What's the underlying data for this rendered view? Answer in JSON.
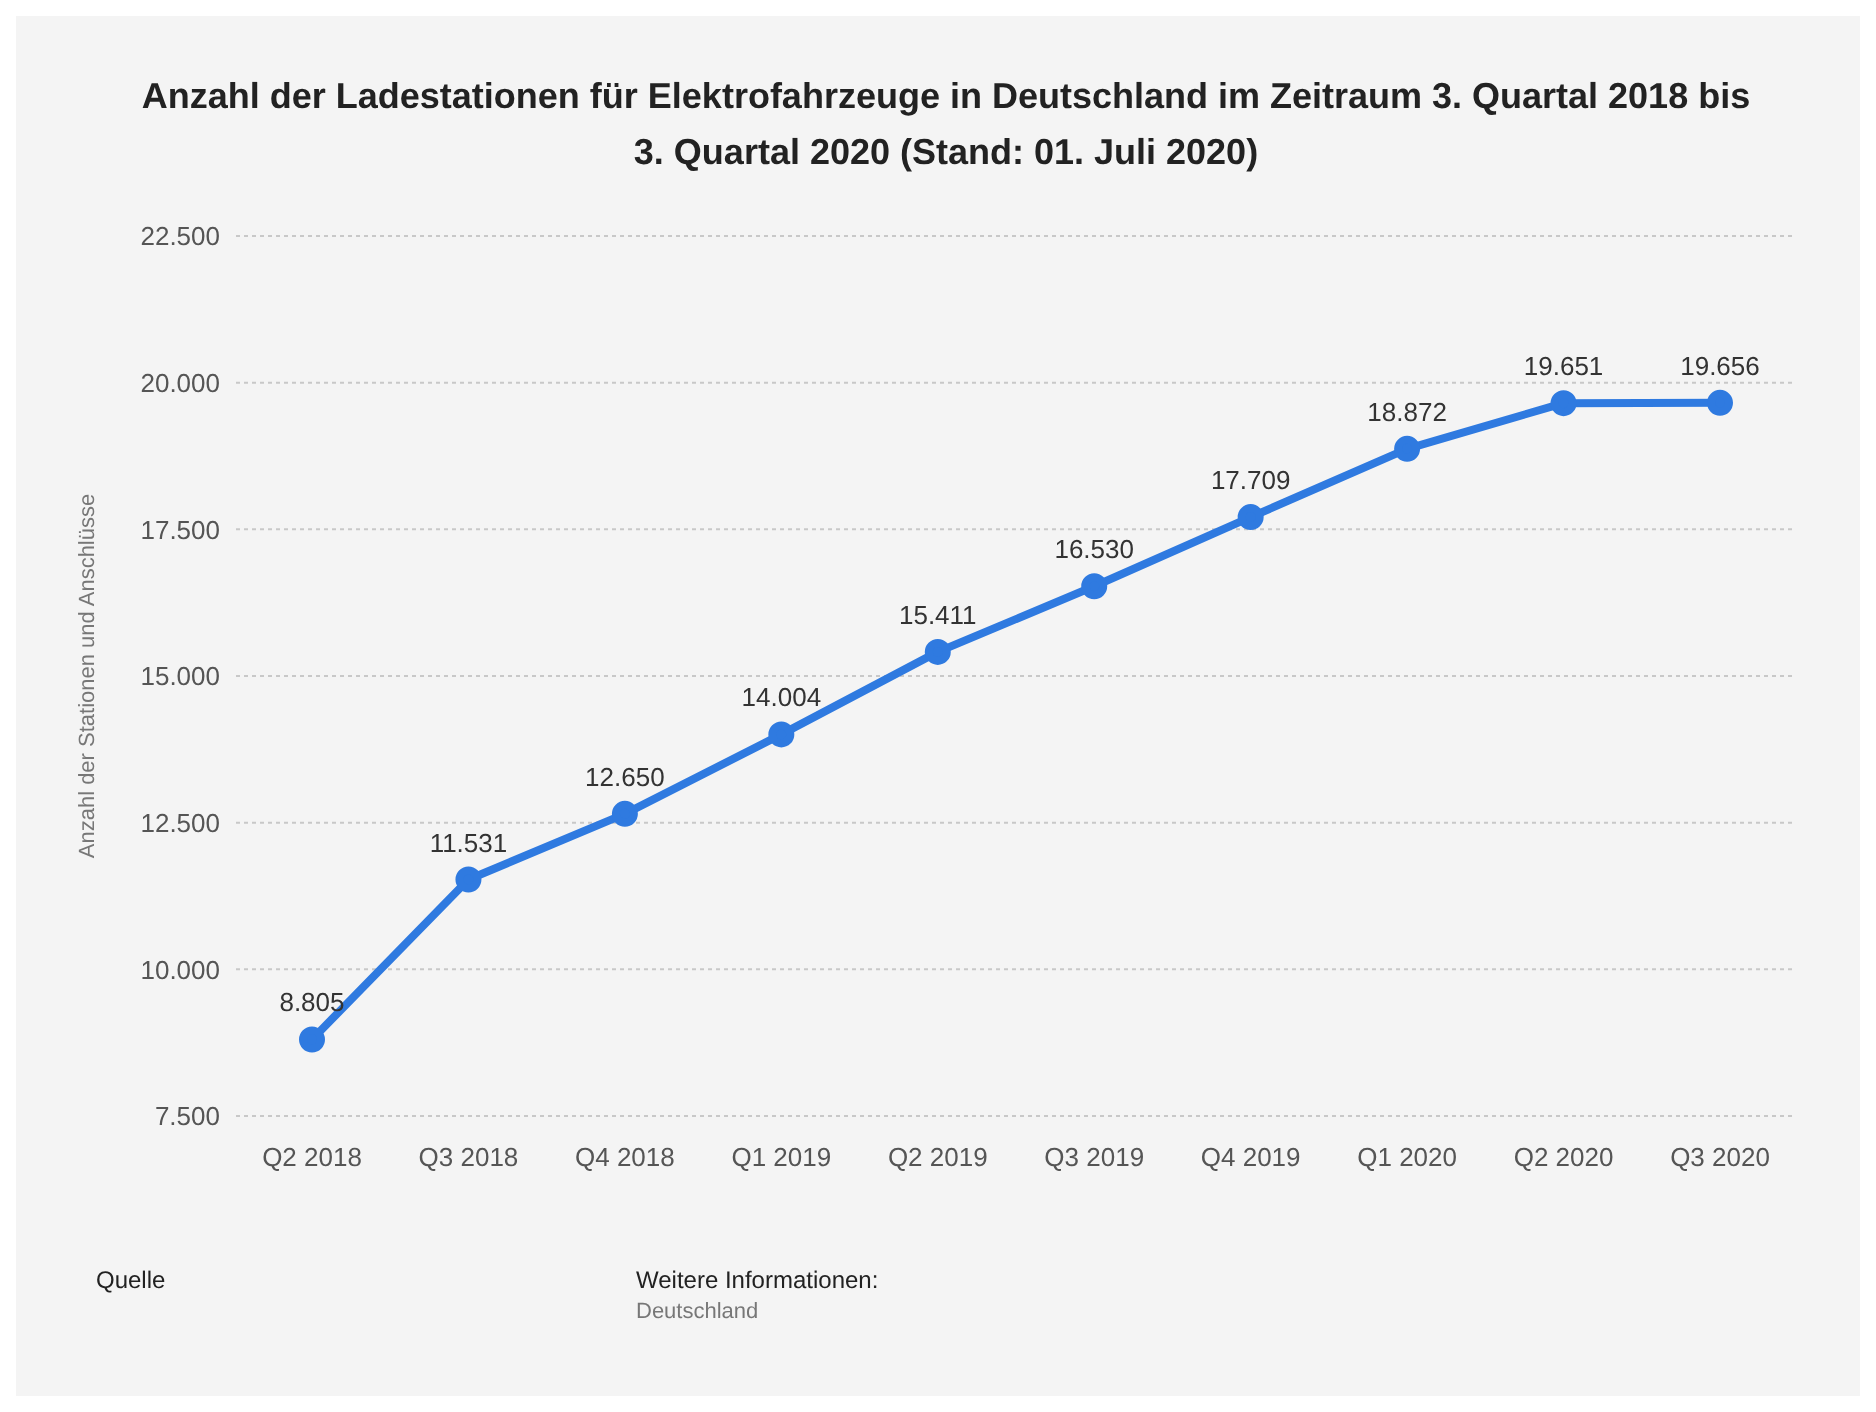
{
  "chart_data": {
    "type": "line",
    "title": "Anzahl der Ladestationen für Elektrofahrzeuge in Deutschland im Zeitraum 3. Quartal 2018 bis 3. Quartal 2020 (Stand: 01. Juli 2020)",
    "ylabel": "Anzahl der Stationen und Anschlüsse",
    "categories": [
      "Q2 2018",
      "Q3 2018",
      "Q4 2018",
      "Q1 2019",
      "Q2 2019",
      "Q3 2019",
      "Q4 2019",
      "Q1 2020",
      "Q2 2020",
      "Q3 2020"
    ],
    "series": [
      {
        "color": "#2f7ae0",
        "values": [
          8805,
          11531,
          12650,
          14004,
          15411,
          16530,
          17709,
          18872,
          19651,
          19656
        ],
        "value_labels": [
          "8.805",
          "11.531",
          "12.650",
          "14.004",
          "15.411",
          "16.530",
          "17.709",
          "18.872",
          "19.651",
          "19.656"
        ]
      }
    ],
    "ylim": [
      7500,
      22500
    ],
    "yticks": [
      {
        "value": 7500,
        "label": "7.500"
      },
      {
        "value": 10000,
        "label": "10.000"
      },
      {
        "value": 12500,
        "label": "12.500"
      },
      {
        "value": 15000,
        "label": "15.000"
      },
      {
        "value": 17500,
        "label": "17.500"
      },
      {
        "value": 20000,
        "label": "20.000"
      },
      {
        "value": 22500,
        "label": "22.500"
      }
    ],
    "grid": "y",
    "marker": "circle",
    "line_style": "solid",
    "legend": false,
    "annotations": [
      "Quelle",
      "Weitere Informationen:",
      "Deutschland"
    ]
  }
}
